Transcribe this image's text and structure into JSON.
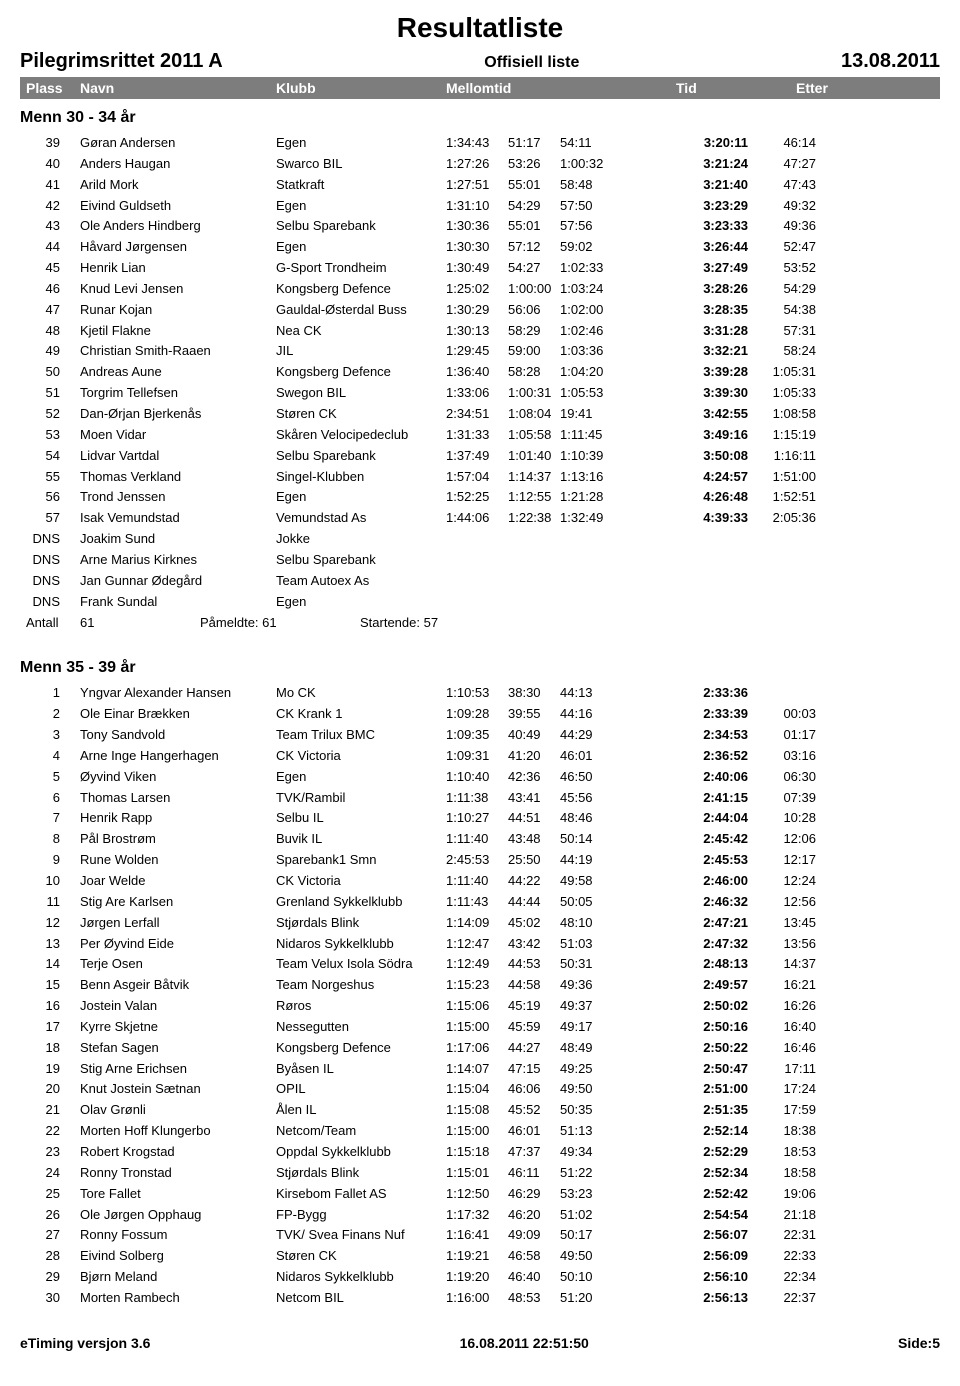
{
  "title": "Resultatliste",
  "event": "Pilegrimsrittet 2011 A",
  "subtitle": "Offisiell liste",
  "date": "13.08.2011",
  "colHeaders": {
    "plass": "Plass",
    "navn": "Navn",
    "klubb": "Klubb",
    "mellomtid": "Mellomtid",
    "tid": "Tid",
    "etter": "Etter"
  },
  "group1": {
    "header": "Menn 30 - 34 år",
    "rows": [
      {
        "pl": "39",
        "nm": "Gøran Andersen",
        "kl": "Egen",
        "m1": "1:34:43",
        "m2": "51:17",
        "m3": "54:11",
        "tid": "3:20:11",
        "et": "46:14"
      },
      {
        "pl": "40",
        "nm": "Anders Haugan",
        "kl": "Swarco BIL",
        "m1": "1:27:26",
        "m2": "53:26",
        "m3": "1:00:32",
        "tid": "3:21:24",
        "et": "47:27"
      },
      {
        "pl": "41",
        "nm": "Arild Mork",
        "kl": "Statkraft",
        "m1": "1:27:51",
        "m2": "55:01",
        "m3": "58:48",
        "tid": "3:21:40",
        "et": "47:43"
      },
      {
        "pl": "42",
        "nm": "Eivind Guldseth",
        "kl": "Egen",
        "m1": "1:31:10",
        "m2": "54:29",
        "m3": "57:50",
        "tid": "3:23:29",
        "et": "49:32"
      },
      {
        "pl": "43",
        "nm": "Ole Anders Hindberg",
        "kl": "Selbu Sparebank",
        "m1": "1:30:36",
        "m2": "55:01",
        "m3": "57:56",
        "tid": "3:23:33",
        "et": "49:36"
      },
      {
        "pl": "44",
        "nm": "Håvard Jørgensen",
        "kl": "Egen",
        "m1": "1:30:30",
        "m2": "57:12",
        "m3": "59:02",
        "tid": "3:26:44",
        "et": "52:47"
      },
      {
        "pl": "45",
        "nm": "Henrik Lian",
        "kl": "G-Sport Trondheim",
        "m1": "1:30:49",
        "m2": "54:27",
        "m3": "1:02:33",
        "tid": "3:27:49",
        "et": "53:52"
      },
      {
        "pl": "46",
        "nm": "Knud Levi Jensen",
        "kl": "Kongsberg Defence",
        "m1": "1:25:02",
        "m2": "1:00:00",
        "m3": "1:03:24",
        "tid": "3:28:26",
        "et": "54:29"
      },
      {
        "pl": "47",
        "nm": "Runar Kojan",
        "kl": "Gauldal-Østerdal Buss",
        "m1": "1:30:29",
        "m2": "56:06",
        "m3": "1:02:00",
        "tid": "3:28:35",
        "et": "54:38"
      },
      {
        "pl": "48",
        "nm": "Kjetil Flakne",
        "kl": "Nea CK",
        "m1": "1:30:13",
        "m2": "58:29",
        "m3": "1:02:46",
        "tid": "3:31:28",
        "et": "57:31"
      },
      {
        "pl": "49",
        "nm": "Christian Smith-Raaen",
        "kl": "JIL",
        "m1": "1:29:45",
        "m2": "59:00",
        "m3": "1:03:36",
        "tid": "3:32:21",
        "et": "58:24"
      },
      {
        "pl": "50",
        "nm": "Andreas Aune",
        "kl": "Kongsberg Defence",
        "m1": "1:36:40",
        "m2": "58:28",
        "m3": "1:04:20",
        "tid": "3:39:28",
        "et": "1:05:31"
      },
      {
        "pl": "51",
        "nm": "Torgrim Tellefsen",
        "kl": "Swegon BIL",
        "m1": "1:33:06",
        "m2": "1:00:31",
        "m3": "1:05:53",
        "tid": "3:39:30",
        "et": "1:05:33"
      },
      {
        "pl": "52",
        "nm": "Dan-Ørjan Bjerkenås",
        "kl": "Støren CK",
        "m1": "2:34:51",
        "m2": "1:08:04",
        "m3": "19:41",
        "tid": "3:42:55",
        "et": "1:08:58"
      },
      {
        "pl": "53",
        "nm": "Moen Vidar",
        "kl": "Skåren Velocipedeclub",
        "m1": "1:31:33",
        "m2": "1:05:58",
        "m3": "1:11:45",
        "tid": "3:49:16",
        "et": "1:15:19"
      },
      {
        "pl": "54",
        "nm": "Lidvar Vartdal",
        "kl": "Selbu Sparebank",
        "m1": "1:37:49",
        "m2": "1:01:40",
        "m3": "1:10:39",
        "tid": "3:50:08",
        "et": "1:16:11"
      },
      {
        "pl": "55",
        "nm": "Thomas Verkland",
        "kl": "Singel-Klubben",
        "m1": "1:57:04",
        "m2": "1:14:37",
        "m3": "1:13:16",
        "tid": "4:24:57",
        "et": "1:51:00"
      },
      {
        "pl": "56",
        "nm": "Trond Jenssen",
        "kl": "Egen",
        "m1": "1:52:25",
        "m2": "1:12:55",
        "m3": "1:21:28",
        "tid": "4:26:48",
        "et": "1:52:51"
      },
      {
        "pl": "57",
        "nm": "Isak Vemundstad",
        "kl": "Vemundstad As",
        "m1": "1:44:06",
        "m2": "1:22:38",
        "m3": "1:32:49",
        "tid": "4:39:33",
        "et": "2:05:36"
      },
      {
        "pl": "DNS",
        "nm": "Joakim Sund",
        "kl": "Jokke",
        "m1": "",
        "m2": "",
        "m3": "",
        "tid": "",
        "et": ""
      },
      {
        "pl": "DNS",
        "nm": "Arne Marius Kirknes",
        "kl": "Selbu Sparebank",
        "m1": "",
        "m2": "",
        "m3": "",
        "tid": "",
        "et": ""
      },
      {
        "pl": "DNS",
        "nm": "Jan Gunnar Ødegård",
        "kl": "Team Autoex As",
        "m1": "",
        "m2": "",
        "m3": "",
        "tid": "",
        "et": ""
      },
      {
        "pl": "DNS",
        "nm": "Frank Sundal",
        "kl": "Egen",
        "m1": "",
        "m2": "",
        "m3": "",
        "tid": "",
        "et": ""
      }
    ],
    "summary": {
      "antall_label": "Antall",
      "antall": "61",
      "pameldte": "Påmeldte:  61",
      "startende": "Startende: 57"
    }
  },
  "group2": {
    "header": "Menn 35 - 39 år",
    "rows": [
      {
        "pl": "1",
        "nm": "Yngvar Alexander Hansen",
        "kl": "Mo CK",
        "m1": "1:10:53",
        "m2": "38:30",
        "m3": "44:13",
        "tid": "2:33:36",
        "et": ""
      },
      {
        "pl": "2",
        "nm": "Ole Einar Brækken",
        "kl": "CK Krank 1",
        "m1": "1:09:28",
        "m2": "39:55",
        "m3": "44:16",
        "tid": "2:33:39",
        "et": "00:03"
      },
      {
        "pl": "3",
        "nm": "Tony Sandvold",
        "kl": "Team Trilux BMC",
        "m1": "1:09:35",
        "m2": "40:49",
        "m3": "44:29",
        "tid": "2:34:53",
        "et": "01:17"
      },
      {
        "pl": "4",
        "nm": "Arne Inge Hangerhagen",
        "kl": "CK Victoria",
        "m1": "1:09:31",
        "m2": "41:20",
        "m3": "46:01",
        "tid": "2:36:52",
        "et": "03:16"
      },
      {
        "pl": "5",
        "nm": "Øyvind Viken",
        "kl": "Egen",
        "m1": "1:10:40",
        "m2": "42:36",
        "m3": "46:50",
        "tid": "2:40:06",
        "et": "06:30"
      },
      {
        "pl": "6",
        "nm": "Thomas Larsen",
        "kl": "TVK/Rambil",
        "m1": "1:11:38",
        "m2": "43:41",
        "m3": "45:56",
        "tid": "2:41:15",
        "et": "07:39"
      },
      {
        "pl": "7",
        "nm": "Henrik Rapp",
        "kl": "Selbu IL",
        "m1": "1:10:27",
        "m2": "44:51",
        "m3": "48:46",
        "tid": "2:44:04",
        "et": "10:28"
      },
      {
        "pl": "8",
        "nm": "Pål Brostrøm",
        "kl": "Buvik IL",
        "m1": "1:11:40",
        "m2": "43:48",
        "m3": "50:14",
        "tid": "2:45:42",
        "et": "12:06"
      },
      {
        "pl": "9",
        "nm": "Rune Wolden",
        "kl": "Sparebank1 Smn",
        "m1": "2:45:53",
        "m2": "25:50",
        "m3": "44:19",
        "tid": "2:45:53",
        "et": "12:17"
      },
      {
        "pl": "10",
        "nm": "Joar Welde",
        "kl": "CK Victoria",
        "m1": "1:11:40",
        "m2": "44:22",
        "m3": "49:58",
        "tid": "2:46:00",
        "et": "12:24"
      },
      {
        "pl": "11",
        "nm": "Stig Are Karlsen",
        "kl": "Grenland Sykkelklubb",
        "m1": "1:11:43",
        "m2": "44:44",
        "m3": "50:05",
        "tid": "2:46:32",
        "et": "12:56"
      },
      {
        "pl": "12",
        "nm": "Jørgen Lerfall",
        "kl": "Stjørdals Blink",
        "m1": "1:14:09",
        "m2": "45:02",
        "m3": "48:10",
        "tid": "2:47:21",
        "et": "13:45"
      },
      {
        "pl": "13",
        "nm": "Per Øyvind Eide",
        "kl": "Nidaros Sykkelklubb",
        "m1": "1:12:47",
        "m2": "43:42",
        "m3": "51:03",
        "tid": "2:47:32",
        "et": "13:56"
      },
      {
        "pl": "14",
        "nm": "Terje Osen",
        "kl": "Team Velux Isola Södra",
        "m1": "1:12:49",
        "m2": "44:53",
        "m3": "50:31",
        "tid": "2:48:13",
        "et": "14:37"
      },
      {
        "pl": "15",
        "nm": "Benn Asgeir Båtvik",
        "kl": "Team Norgeshus",
        "m1": "1:15:23",
        "m2": "44:58",
        "m3": "49:36",
        "tid": "2:49:57",
        "et": "16:21"
      },
      {
        "pl": "16",
        "nm": "Jostein Valan",
        "kl": "Røros",
        "m1": "1:15:06",
        "m2": "45:19",
        "m3": "49:37",
        "tid": "2:50:02",
        "et": "16:26"
      },
      {
        "pl": "17",
        "nm": "Kyrre Skjetne",
        "kl": "Nessegutten",
        "m1": "1:15:00",
        "m2": "45:59",
        "m3": "49:17",
        "tid": "2:50:16",
        "et": "16:40"
      },
      {
        "pl": "18",
        "nm": "Stefan Sagen",
        "kl": "Kongsberg Defence",
        "m1": "1:17:06",
        "m2": "44:27",
        "m3": "48:49",
        "tid": "2:50:22",
        "et": "16:46"
      },
      {
        "pl": "19",
        "nm": "Stig Arne Erichsen",
        "kl": "Byåsen IL",
        "m1": "1:14:07",
        "m2": "47:15",
        "m3": "49:25",
        "tid": "2:50:47",
        "et": "17:11"
      },
      {
        "pl": "20",
        "nm": "Knut Jostein Sætnan",
        "kl": "OPIL",
        "m1": "1:15:04",
        "m2": "46:06",
        "m3": "49:50",
        "tid": "2:51:00",
        "et": "17:24"
      },
      {
        "pl": "21",
        "nm": "Olav Grønli",
        "kl": "Ålen IL",
        "m1": "1:15:08",
        "m2": "45:52",
        "m3": "50:35",
        "tid": "2:51:35",
        "et": "17:59"
      },
      {
        "pl": "22",
        "nm": "Morten Hoff Klungerbo",
        "kl": "Netcom/Team",
        "m1": "1:15:00",
        "m2": "46:01",
        "m3": "51:13",
        "tid": "2:52:14",
        "et": "18:38"
      },
      {
        "pl": "23",
        "nm": "Robert Krogstad",
        "kl": "Oppdal Sykkelklubb",
        "m1": "1:15:18",
        "m2": "47:37",
        "m3": "49:34",
        "tid": "2:52:29",
        "et": "18:53"
      },
      {
        "pl": "24",
        "nm": "Ronny Tronstad",
        "kl": "Stjørdals Blink",
        "m1": "1:15:01",
        "m2": "46:11",
        "m3": "51:22",
        "tid": "2:52:34",
        "et": "18:58"
      },
      {
        "pl": "25",
        "nm": "Tore Fallet",
        "kl": "Kirsebom Fallet AS",
        "m1": "1:12:50",
        "m2": "46:29",
        "m3": "53:23",
        "tid": "2:52:42",
        "et": "19:06"
      },
      {
        "pl": "26",
        "nm": "Ole Jørgen Opphaug",
        "kl": "FP-Bygg",
        "m1": "1:17:32",
        "m2": "46:20",
        "m3": "51:02",
        "tid": "2:54:54",
        "et": "21:18"
      },
      {
        "pl": "27",
        "nm": "Ronny Fossum",
        "kl": "TVK/ Svea Finans Nuf",
        "m1": "1:16:41",
        "m2": "49:09",
        "m3": "50:17",
        "tid": "2:56:07",
        "et": "22:31"
      },
      {
        "pl": "28",
        "nm": "Eivind Solberg",
        "kl": "Støren CK",
        "m1": "1:19:21",
        "m2": "46:58",
        "m3": "49:50",
        "tid": "2:56:09",
        "et": "22:33"
      },
      {
        "pl": "29",
        "nm": "Bjørn Meland",
        "kl": "Nidaros Sykkelklubb",
        "m1": "1:19:20",
        "m2": "46:40",
        "m3": "50:10",
        "tid": "2:56:10",
        "et": "22:34"
      },
      {
        "pl": "30",
        "nm": "Morten Rambech",
        "kl": "Netcom BIL",
        "m1": "1:16:00",
        "m2": "48:53",
        "m3": "51:20",
        "tid": "2:56:13",
        "et": "22:37"
      }
    ]
  },
  "footer": {
    "left": "eTiming versjon 3.6",
    "center": "16.08.2011 22:51:50",
    "right": "Side:5"
  }
}
